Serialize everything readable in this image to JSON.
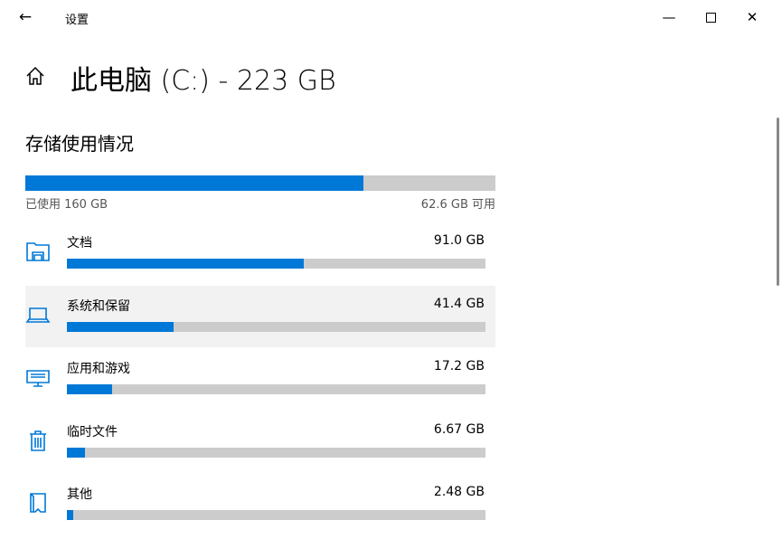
{
  "window": {
    "title": "设置",
    "back_icon": "arrow-left-icon",
    "minimize_icon": "minimize-icon",
    "maximize_icon": "maximize-icon",
    "close_icon": "close-icon"
  },
  "header": {
    "title": "此电脑 (C:) - 223 GB",
    "home_icon": "home-icon"
  },
  "storage": {
    "section_title": "存储使用情况",
    "used_label": "已使用 160 GB",
    "free_label": "62.6 GB 可用",
    "used_percent": 72,
    "accent": "#0078d7",
    "track": "#cccccc"
  },
  "categories": [
    {
      "name": "文档",
      "size": "91.0 GB",
      "percent": 56.6,
      "icon": "documents-folder-icon"
    },
    {
      "name": "系统和保留",
      "size": "41.4 GB",
      "percent": 25.5,
      "icon": "laptop-icon",
      "highlighted": true
    },
    {
      "name": "应用和游戏",
      "size": "17.2 GB",
      "percent": 10.8,
      "icon": "keyboard-monitor-icon"
    },
    {
      "name": "临时文件",
      "size": "6.67 GB",
      "percent": 4.3,
      "icon": "trash-icon"
    },
    {
      "name": "其他",
      "size": "2.48 GB",
      "percent": 1.5,
      "icon": "folder-other-icon"
    }
  ]
}
